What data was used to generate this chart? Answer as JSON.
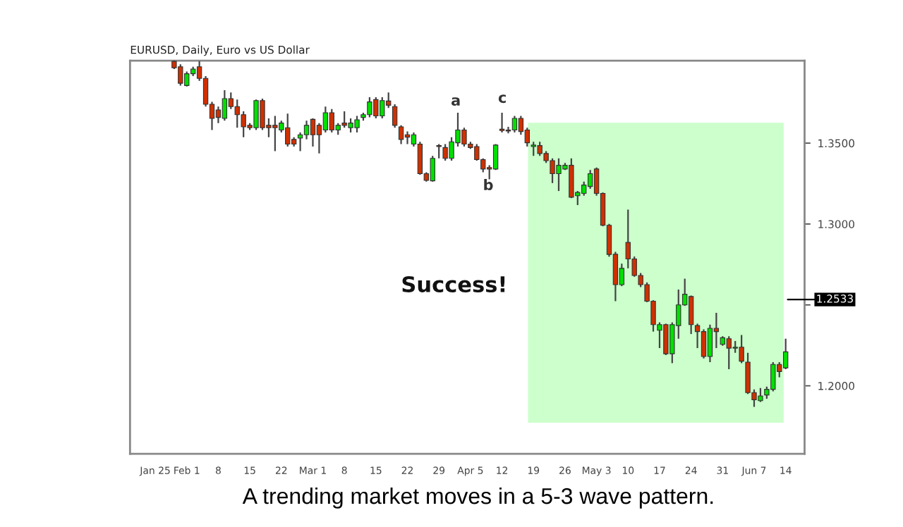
{
  "chart_data": {
    "type": "candlestick",
    "title": "EURUSD, Daily, Euro vs US Dollar",
    "categories": [
      "Jan 25",
      null,
      null,
      null,
      null,
      "Feb 1",
      null,
      null,
      null,
      null,
      "8",
      null,
      null,
      null,
      null,
      "15",
      null,
      null,
      null,
      null,
      "22",
      null,
      null,
      null,
      null,
      "Mar 1",
      null,
      null,
      null,
      null,
      "8",
      null,
      null,
      null,
      null,
      "15",
      null,
      null,
      null,
      null,
      "22",
      null,
      null,
      null,
      null,
      "29",
      null,
      null,
      null,
      null,
      "Apr 5",
      null,
      null,
      null,
      null,
      "12",
      null,
      null,
      null,
      null,
      "19",
      null,
      null,
      null,
      null,
      "26",
      null,
      null,
      null,
      null,
      "May 3",
      null,
      null,
      null,
      null,
      "10",
      null,
      null,
      null,
      null,
      "17",
      null,
      null,
      null,
      null,
      "24",
      null,
      null,
      null,
      null,
      "31",
      null,
      null,
      null,
      null,
      "Jun 7",
      null,
      null,
      null,
      null,
      "14"
    ],
    "ohlc": [
      null,
      null,
      null,
      [
        1.4005,
        1.401,
        1.3958,
        1.3966
      ],
      [
        1.3972,
        1.3987,
        1.3856,
        1.387
      ],
      [
        1.3856,
        1.3943,
        1.385,
        1.3929
      ],
      [
        1.3929,
        1.3972,
        1.3914,
        1.3958
      ],
      [
        1.3972,
        1.4007,
        1.3885,
        1.39
      ],
      [
        1.39,
        1.3914,
        1.3726,
        1.374
      ],
      [
        1.374,
        1.3755,
        1.3581,
        1.3653
      ],
      [
        1.3705,
        1.3726,
        1.3624,
        1.3659
      ],
      [
        1.3653,
        1.3827,
        1.3639,
        1.3775
      ],
      [
        1.3775,
        1.3813,
        1.3711,
        1.3726
      ],
      [
        1.3726,
        1.3769,
        1.3595,
        1.3676
      ],
      [
        1.3676,
        1.3697,
        1.3537,
        1.3601
      ],
      [
        1.361,
        1.3624,
        1.3581,
        1.3595
      ],
      [
        1.3595,
        1.3769,
        1.3581,
        1.3763
      ],
      [
        1.3763,
        1.3775,
        1.3581,
        1.3595
      ],
      [
        1.361,
        1.3653,
        1.3537,
        1.3595
      ],
      [
        1.361,
        1.3668,
        1.345,
        1.3595
      ],
      [
        1.3581,
        1.3639,
        1.3566,
        1.3624
      ],
      [
        1.3595,
        1.3682,
        1.3479,
        1.3494
      ],
      [
        1.3523,
        1.3537,
        1.3479,
        1.3494
      ],
      [
        1.3531,
        1.3566,
        1.345,
        1.3552
      ],
      [
        1.3552,
        1.3639,
        1.3523,
        1.361
      ],
      [
        1.3647,
        1.3653,
        1.3479,
        1.3552
      ],
      [
        1.361,
        1.3624,
        1.3436,
        1.3552
      ],
      [
        1.3581,
        1.3726,
        1.3566,
        1.3688
      ],
      [
        1.3688,
        1.3711,
        1.3566,
        1.3581
      ],
      [
        1.3581,
        1.3624,
        1.3552,
        1.361
      ],
      [
        1.3624,
        1.3697,
        1.3595,
        1.361
      ],
      [
        1.3595,
        1.3653,
        1.3566,
        1.3624
      ],
      [
        1.3595,
        1.3668,
        1.3566,
        1.3644
      ],
      [
        1.3659,
        1.3688,
        1.3639,
        1.3676
      ],
      [
        1.3676,
        1.3784,
        1.3659,
        1.3755
      ],
      [
        1.3769,
        1.3784,
        1.3653,
        1.3668
      ],
      [
        1.3668,
        1.3784,
        1.3653,
        1.3763
      ],
      [
        1.376,
        1.3813,
        1.3717,
        1.3734
      ],
      [
        1.3726,
        1.374,
        1.3595,
        1.361
      ],
      [
        1.3601,
        1.361,
        1.3494,
        1.3523
      ],
      [
        1.3552,
        1.3572,
        1.3494,
        1.3537
      ],
      [
        1.3494,
        1.3566,
        1.3479,
        1.3552
      ],
      [
        1.3494,
        1.3508,
        1.3305,
        1.3311
      ],
      [
        1.3311,
        1.332,
        1.3262,
        1.327
      ],
      [
        1.3267,
        1.3421,
        1.3262,
        1.3406
      ],
      [
        1.3485,
        1.3494,
        1.3406,
        1.3479
      ],
      [
        1.3473,
        1.3494,
        1.3392,
        1.3406
      ],
      [
        1.3406,
        1.3537,
        1.3392,
        1.3508
      ],
      [
        1.3502,
        1.3688,
        1.3479,
        1.3581
      ],
      [
        1.3581,
        1.3595,
        1.3479,
        1.3494
      ],
      [
        1.3494,
        1.3508,
        1.3465,
        1.3473
      ],
      [
        1.3479,
        1.3494,
        1.3392,
        1.3398
      ],
      [
        1.3398,
        1.3406,
        1.332,
        1.334
      ],
      [
        1.3349,
        1.3363,
        1.3276,
        1.334
      ],
      [
        1.334,
        1.3494,
        1.3334,
        1.3488
      ],
      [
        1.3586,
        1.3688,
        1.3566,
        1.3578
      ],
      [
        1.3581,
        1.3601,
        1.356,
        1.3575
      ],
      [
        1.3581,
        1.3668,
        1.3566,
        1.3653
      ],
      [
        1.3653,
        1.3668,
        1.3552,
        1.3572
      ],
      [
        1.3581,
        1.3595,
        1.3479,
        1.3502
      ],
      [
        1.3479,
        1.3508,
        1.3421,
        1.3488
      ],
      [
        1.3485,
        1.3508,
        1.3421,
        1.3436
      ],
      [
        1.3436,
        1.345,
        1.3378,
        1.3392
      ],
      [
        1.3392,
        1.3406,
        1.3253,
        1.3311
      ],
      [
        1.3311,
        1.3406,
        1.3204,
        1.3363
      ],
      [
        1.334,
        1.3378,
        1.3334,
        1.3363
      ],
      [
        1.3363,
        1.3406,
        1.316,
        1.3166
      ],
      [
        1.3175,
        1.3204,
        1.3117,
        1.3195
      ],
      [
        1.3189,
        1.3262,
        1.3175,
        1.3241
      ],
      [
        1.3232,
        1.3334,
        1.3218,
        1.3311
      ],
      [
        1.334,
        1.3349,
        1.3175,
        1.3189
      ],
      [
        1.3189,
        1.3195,
        1.2986,
        1.2992
      ],
      [
        1.2992,
        1.3001,
        1.2798,
        1.2812
      ],
      [
        1.2813,
        1.2828,
        1.2523,
        1.2625
      ],
      [
        1.2625,
        1.2755,
        1.2616,
        1.2726
      ],
      [
        1.2886,
        1.3089,
        1.2726,
        1.2784
      ],
      [
        1.2784,
        1.2799,
        1.2674,
        1.2682
      ],
      [
        1.2682,
        1.2697,
        1.261,
        1.2625
      ],
      [
        1.2625,
        1.2639,
        1.2517,
        1.2523
      ],
      [
        1.2523,
        1.2529,
        1.2335,
        1.2378
      ],
      [
        1.2343,
        1.2392,
        1.2233,
        1.2378
      ],
      [
        1.2378,
        1.2384,
        1.219,
        1.2198
      ],
      [
        1.2198,
        1.2392,
        1.214,
        1.2378
      ],
      [
        1.2372,
        1.2595,
        1.2291,
        1.25
      ],
      [
        1.25,
        1.2662,
        1.2494,
        1.2566
      ],
      [
        1.2552,
        1.2558,
        1.232,
        1.2378
      ],
      [
        1.2372,
        1.2384,
        1.2233,
        1.2335
      ],
      [
        1.2335,
        1.2349,
        1.2169,
        1.2181
      ],
      [
        1.2181,
        1.2378,
        1.2146,
        1.2355
      ],
      [
        1.2355,
        1.2451,
        1.2233,
        1.2335
      ],
      [
        1.2256,
        1.2306,
        1.2248,
        1.2297
      ],
      [
        1.2291,
        1.2306,
        1.2103,
        1.2233
      ],
      [
        1.2233,
        1.2277,
        1.2204,
        1.2239
      ],
      [
        1.2239,
        1.2314,
        1.214,
        1.2152
      ],
      [
        1.2146,
        1.2204,
        1.1949,
        1.1958
      ],
      [
        1.1958,
        1.1978,
        1.187,
        1.1914
      ],
      [
        1.1908,
        1.1986,
        1.19,
        1.1937
      ],
      [
        1.1943,
        1.1995,
        1.192,
        1.1978
      ],
      [
        1.1978,
        1.2146,
        1.1966,
        1.2132
      ],
      [
        1.2132,
        1.2146,
        1.2053,
        1.2088
      ],
      [
        1.2111,
        1.2291,
        1.2103,
        1.221
      ]
    ],
    "colors": [
      null,
      null,
      null,
      "#d03000",
      "#d03000",
      "#00e000",
      "#00e000",
      "#d03000",
      "#d03000",
      "#d03000",
      "#d03000",
      "#00e000",
      "#d03000",
      "#d03000",
      "#d03000",
      "#d03000",
      "#00e000",
      "#d03000",
      "#d03000",
      "#d03000",
      "#00e000",
      "#d03000",
      "#d03000",
      "#00e000",
      "#00e000",
      "#d03000",
      "#d03000",
      "#00e000",
      "#d03000",
      "#00e000",
      "#d03000",
      "#00e000",
      "#00e000",
      "#00e000",
      "#00e000",
      "#d03000",
      "#00e000",
      "#d03000",
      "#d03000",
      "#d03000",
      "#d03000",
      "#00e000",
      "#d03000",
      "#d03000",
      "#00e000",
      "#d03000",
      "#d03000",
      "#00e000",
      "#00e000",
      "#d03000",
      "#d03000",
      "#d03000",
      "#d03000",
      "#d03000",
      "#00e000",
      "#d03000",
      "#d03000",
      "#00e000",
      "#d03000",
      "#d03000",
      "#00e000",
      "#d03000",
      "#d03000",
      "#d03000",
      "#00e000",
      "#00e000",
      "#d03000",
      "#00e000",
      "#00e000",
      "#00e000",
      "#d03000",
      "#d03000",
      "#d03000",
      "#d03000",
      "#00e000",
      "#d03000",
      "#d03000",
      "#d03000",
      "#d03000",
      "#d03000",
      "#00e000",
      "#d03000",
      "#00e000",
      "#00e000",
      "#00e000",
      "#d03000",
      "#d03000",
      "#d03000",
      "#00e000",
      "#d03000",
      "#00e000",
      "#d03000",
      "#00e000",
      "#d03000",
      "#d03000",
      "#d03000",
      "#00e000",
      "#00e000",
      "#00e000",
      "#d03000",
      "#00e000"
    ],
    "ylim": [
      1.158,
      1.401
    ],
    "yticks": [
      {
        "value": 1.2,
        "label": "1.2000"
      },
      {
        "value": 1.25,
        "label": null
      },
      {
        "value": 1.3,
        "label": "1.3000"
      },
      {
        "value": 1.35,
        "label": "1.3500"
      }
    ],
    "ref_lines": [
      {
        "axis": "y",
        "value": 1.2533,
        "label": "1.2533",
        "color": "#000000"
      }
    ],
    "annotations": [
      "a",
      "b",
      "c",
      "Success!",
      "A trending market moves in a 5-3 wave pattern."
    ],
    "grid": false
  }
}
